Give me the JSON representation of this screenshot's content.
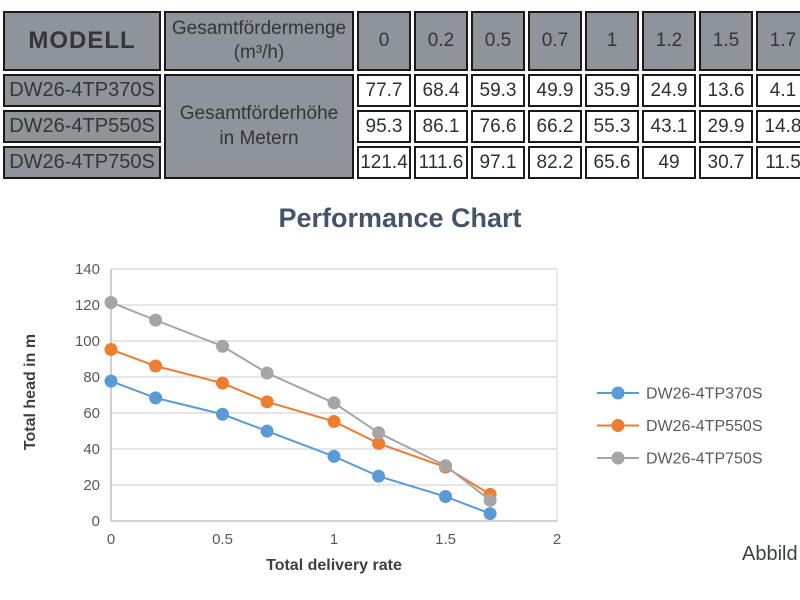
{
  "table": {
    "header": {
      "model_label": "MODELL",
      "flow_label": "Gesamtfördermenge (m³/h)",
      "flow_values": [
        "0",
        "0.2",
        "0.5",
        "0.7",
        "1",
        "1.2",
        "1.5",
        "1.7"
      ]
    },
    "head_label": "Gesamtförderhöhe in Metern",
    "rows": [
      {
        "model": "DW26-4TP370S",
        "values": [
          "77.7",
          "68.4",
          "59.3",
          "49.9",
          "35.9",
          "24.9",
          "13.6",
          "4.1"
        ]
      },
      {
        "model": "DW26-4TP550S",
        "values": [
          "95.3",
          "86.1",
          "76.6",
          "66.2",
          "55.3",
          "43.1",
          "29.9",
          "14.8"
        ]
      },
      {
        "model": "DW26-4TP750S",
        "values": [
          "121.4",
          "111.6",
          "97.1",
          "82.2",
          "65.6",
          "49",
          "30.7",
          "11.5"
        ]
      }
    ]
  },
  "chart_data": {
    "type": "line",
    "title": "Performance Chart",
    "xlabel": "Total delivery rate",
    "ylabel": "Total head in m",
    "x": [
      0,
      0.2,
      0.5,
      0.7,
      1,
      1.2,
      1.5,
      1.7
    ],
    "series": [
      {
        "name": "DW26-4TP370S",
        "color": "#5B9BD5",
        "values": [
          77.7,
          68.4,
          59.3,
          49.9,
          35.9,
          24.9,
          13.6,
          4.1
        ]
      },
      {
        "name": "DW26-4TP550S",
        "color": "#ED7D31",
        "values": [
          95.3,
          86.1,
          76.6,
          66.2,
          55.3,
          43.1,
          29.9,
          14.8
        ]
      },
      {
        "name": "DW26-4TP750S",
        "color": "#A5A5A5",
        "values": [
          121.4,
          111.6,
          97.1,
          82.2,
          65.6,
          49,
          30.7,
          11.5
        ]
      }
    ],
    "xlim": [
      0,
      2
    ],
    "ylim": [
      0,
      140
    ],
    "x_ticks": [
      0,
      0.5,
      1,
      1.5,
      2
    ],
    "y_ticks": [
      0,
      20,
      40,
      60,
      80,
      100,
      120,
      140
    ],
    "grid": true,
    "legend_position": "right"
  },
  "caption": {
    "text": "Abbild"
  },
  "colors": {
    "title": "#44546A",
    "series_blue": "#5B9BD5",
    "series_orange": "#ED7D31",
    "series_gray": "#A5A5A5",
    "table_cell_bg": "#8F939A",
    "table_border": "#1A1A1A",
    "gridline": "#D6D6D6",
    "axis": "#B7B7B7",
    "tick_text": "#595959"
  }
}
